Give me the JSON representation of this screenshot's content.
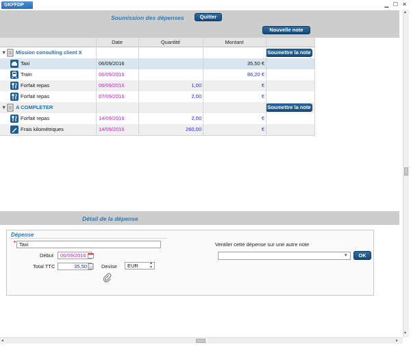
{
  "window": {
    "app_label": "GKFFDP",
    "controls": {
      "minimize": "▁",
      "maximize": "☐",
      "close": "✕"
    }
  },
  "header": {
    "title": "Soumission des dépenses",
    "quit_label": "Quitter",
    "new_note_label": "Nouvelle note"
  },
  "grid": {
    "columns": [
      "Date",
      "Quantité",
      "Montant"
    ],
    "submit_label": "Soumettre la note",
    "groups": [
      {
        "name": "Mission consulting client X",
        "rows": [
          {
            "label": "Taxi",
            "icon": "taxi-icon",
            "date": "06/09/2016",
            "quantity": "",
            "amount": "35,50 €",
            "state": "selected"
          },
          {
            "label": "Train",
            "icon": "train-icon",
            "date": "06/09/2016",
            "quantity": "",
            "amount": "86,20 €",
            "state": "pending"
          },
          {
            "label": "Forfait repas",
            "icon": "meal-icon",
            "date": "06/09/2016",
            "quantity": "1,00",
            "amount": "€",
            "state": "pending"
          },
          {
            "label": "Forfait repas",
            "icon": "meal-icon",
            "date": "07/09/2016",
            "quantity": "2,00",
            "amount": "€",
            "state": "pending"
          }
        ]
      },
      {
        "name": "A COMPLETER",
        "rows": [
          {
            "label": "Forfait repas",
            "icon": "meal-icon",
            "date": "14/09/2016",
            "quantity": "2,00",
            "amount": "€",
            "state": "pending"
          },
          {
            "label": "Frais kilométriques",
            "icon": "pen-icon",
            "date": "14/09/2016",
            "quantity": "260,00",
            "amount": "€",
            "state": "pending"
          }
        ]
      }
    ]
  },
  "detail": {
    "title": "Détail de la dépense",
    "section_title": "Dépense",
    "required_mark": "*",
    "name_value": "Taxi",
    "debut_label": "Début",
    "debut_value": "06/09/2016",
    "total_label": "Total TTC",
    "total_value": "35,50",
    "devise_label": "Devise",
    "devise_value": "EUR",
    "ventiler_label": "Ventiler cette dépense sur une autre note",
    "ventiler_value": "",
    "ok_label": "OK"
  },
  "colors": {
    "accent": "#2a7ab8",
    "pending_date": "#d21acd",
    "value_blue": "#1b32c8",
    "button": "#174a78"
  }
}
